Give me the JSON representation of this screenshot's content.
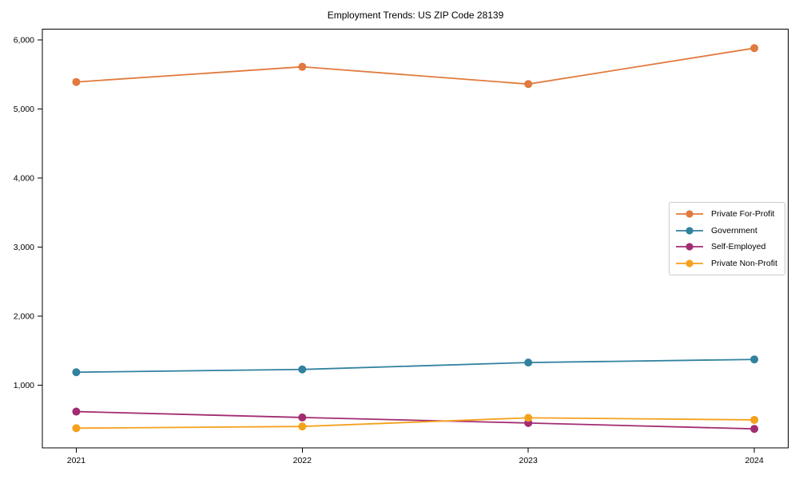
{
  "chart_data": {
    "type": "line",
    "title": "Employment Trends: US ZIP Code 28139",
    "xlabel": "",
    "ylabel": "",
    "grid": false,
    "legend_position": "center-right",
    "marker_shape": "circle",
    "axis_color": "#000000",
    "x": [
      2021,
      2022,
      2023,
      2024
    ],
    "x_tick_labels": [
      "2021",
      "2022",
      "2023",
      "2024"
    ],
    "xlim": [
      2020.85,
      2024.15
    ],
    "y_ticks": [
      1000,
      2000,
      3000,
      4000,
      5000,
      6000
    ],
    "y_tick_labels": [
      "1,000",
      "2,000",
      "3,000",
      "4,000",
      "5,000",
      "6,000"
    ],
    "ylim": [
      95,
      6155
    ],
    "series": [
      {
        "name": "Private For-Profit",
        "color": "#e17a3e",
        "values": [
          5390,
          5610,
          5360,
          5880
        ]
      },
      {
        "name": "Government",
        "color": "#31819f",
        "values": [
          1190,
          1230,
          1330,
          1375
        ]
      },
      {
        "name": "Self-Employed",
        "color": "#a22c71",
        "values": [
          620,
          535,
          455,
          370
        ]
      },
      {
        "name": "Private Non-Profit",
        "color": "#f4a11d",
        "values": [
          380,
          405,
          530,
          500
        ]
      }
    ]
  }
}
